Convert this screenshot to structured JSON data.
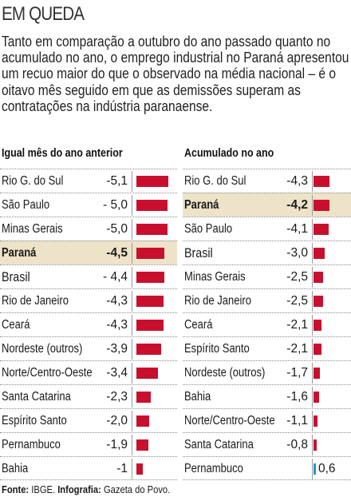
{
  "title": "EM QUEDA",
  "intro": "Tanto em comparação a outubro do ano passado quanto no acumulado no ano, o emprego industrial no Paraná apresentou um recuo maior do que o observado na média nacional – é o oitavo mês seguido em que as demissões superam as contratações na indústria paranaense.",
  "source": {
    "label1": "Fonte:",
    "text1": " IBGE. ",
    "label2": "Infografia:",
    "text2": " Gazeta do Povo."
  },
  "colors": {
    "negative": "#c8102e",
    "positive": "#1a9bd7",
    "highlight": "#ede3c8"
  },
  "chart_data": [
    {
      "type": "bar",
      "title": "Igual mês do ano anterior",
      "categories": [
        "Rio G. do Sul",
        "São Paulo",
        "Minas Gerais",
        "Paraná",
        "Brasil",
        "Rio de Janeiro",
        "Ceará",
        "Nordeste (outros)",
        "Norte/Centro-Oeste",
        "Santa Catarina",
        "Espírito Santo",
        "Pernambuco",
        "Bahia"
      ],
      "values": [
        -5.1,
        -5.0,
        -5.0,
        -4.5,
        -4.4,
        -4.3,
        -4.3,
        -3.9,
        -3.4,
        -2.3,
        -2.0,
        -1.9,
        -1
      ],
      "labels": [
        "-5,1",
        "- 5,0",
        "-5,0",
        "-4,5",
        "- 4,4",
        "-4,3",
        "-4,3",
        "-3,9",
        "-3,4",
        "-2,3",
        "-2,0",
        "-1,9",
        "-1"
      ],
      "highlight": "Paraná",
      "emphasis": [
        "Brasil"
      ]
    },
    {
      "type": "bar",
      "title": "Acumulado no ano",
      "categories": [
        "Rio G. do Sul",
        "Paraná",
        "São Paulo",
        "Brasil",
        "Minas Gerais",
        "Rio de Janeiro",
        "Ceará",
        "Espírito Santo",
        "Nordeste (outros)",
        "Bahia",
        "Norte/Centro-Oeste",
        "Santa Catarina",
        "Pernambuco"
      ],
      "values": [
        -4.3,
        -4.2,
        -4.1,
        -3.0,
        -2.5,
        -2.5,
        -2.1,
        -2.1,
        -1.7,
        -1.6,
        -1.1,
        -0.8,
        0.6
      ],
      "labels": [
        "-4,3",
        "-4,2",
        "-4,1",
        "-3,0",
        "-2,5",
        "-2,5",
        "-2,1",
        "-2,1",
        "-1,7",
        "-1,6",
        "-1,1",
        "-0,8",
        "0,6"
      ],
      "highlight": "Paraná",
      "emphasis": [
        "Brasil"
      ]
    }
  ]
}
